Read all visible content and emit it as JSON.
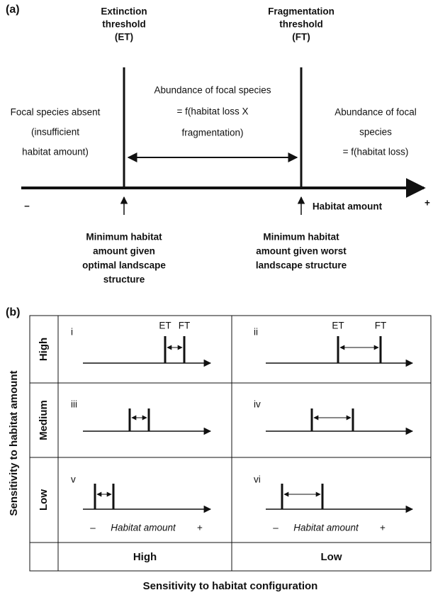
{
  "panel_a": {
    "label": "(a)",
    "et_label": [
      "Extinction",
      "threshold",
      "(ET)"
    ],
    "ft_label": [
      "Fragmentation",
      "threshold",
      "(FT)"
    ],
    "left_text": [
      "Focal species absent",
      "(insufficient",
      "habitat amount)"
    ],
    "middle_text": [
      "Abundance of focal species",
      "= f(habitat loss X",
      "fragmentation)"
    ],
    "right_text": [
      "Abundance of focal",
      "species",
      "= f(habitat loss)"
    ],
    "minus": "–",
    "plus": "+",
    "axis_label": "Habitat amount",
    "left_note": [
      "Minimum habitat",
      "amount given",
      "optimal landscape",
      "structure"
    ],
    "right_note": [
      "Minimum  habitat",
      "amount given worst",
      "landscape structure"
    ]
  },
  "panel_b": {
    "label": "(b)",
    "y_axis_title": "Sensitivity to habitat amount",
    "x_axis_title": "Sensitivity to habitat configuration",
    "rows": [
      "High",
      "Medium",
      "Low"
    ],
    "columns": [
      "High",
      "Low"
    ],
    "cells": [
      {
        "numeral": "i",
        "et": "ET",
        "ft": "FT"
      },
      {
        "numeral": "ii",
        "et": "ET",
        "ft": "FT"
      },
      {
        "numeral": "iii"
      },
      {
        "numeral": "iv"
      },
      {
        "numeral": "v",
        "minus": "–",
        "axis_label": "Habitat amount",
        "plus": "+"
      },
      {
        "numeral": "vi",
        "minus": "–",
        "axis_label": "Habitat amount",
        "plus": "+"
      }
    ]
  }
}
